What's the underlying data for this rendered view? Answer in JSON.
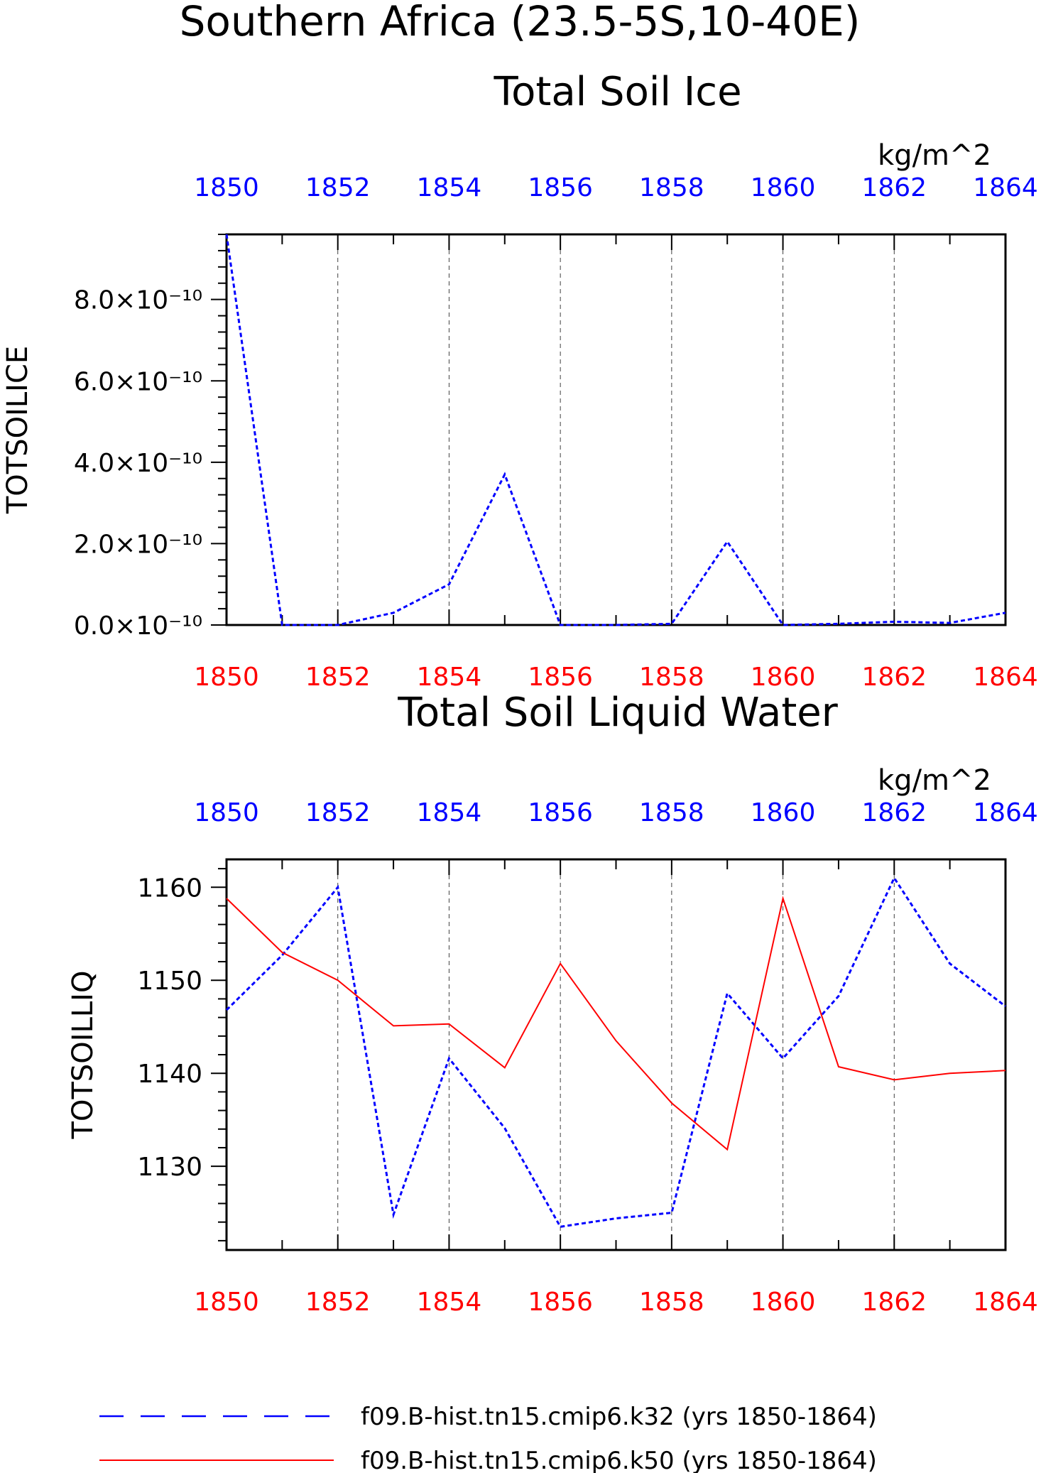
{
  "figure": {
    "title": "Southern Africa (23.5-5S,10-40E)"
  },
  "colors": {
    "k32": "#0000ff",
    "k50": "#ff0000",
    "axis": "#000000",
    "grid": "#000000"
  },
  "legend": {
    "placement": "bottom",
    "entries": [
      {
        "label": "f09.B-hist.tn15.cmip6.k32 (yrs 1850-1864)",
        "color": "#0000ff",
        "style": "dashed"
      },
      {
        "label": "f09.B-hist.tn15.cmip6.k50 (yrs 1850-1864)",
        "color": "#ff0000",
        "style": "solid"
      }
    ]
  },
  "chart_data": [
    {
      "type": "line",
      "title": "Total Soil Ice",
      "units": "kg/m^2",
      "ylabel": "TOTSOILICE",
      "x": [
        1850,
        1851,
        1852,
        1853,
        1854,
        1855,
        1856,
        1857,
        1858,
        1859,
        1860,
        1861,
        1862,
        1863,
        1864
      ],
      "xlim": [
        1850,
        1864
      ],
      "ylim": [
        0,
        9.6e-10
      ],
      "yticks": [
        0,
        2e-10,
        4e-10,
        6e-10,
        8e-10
      ],
      "ytick_labels": [
        "0.0×10⁻¹⁰",
        "2.0×10⁻¹⁰",
        "4.0×10⁻¹⁰",
        "6.0×10⁻¹⁰",
        "8.0×10⁻¹⁰"
      ],
      "xticks": [
        1850,
        1852,
        1854,
        1856,
        1858,
        1860,
        1862,
        1864
      ],
      "xtick_labels_top": [
        "1850",
        "1852",
        "1854",
        "1856",
        "1858",
        "1860",
        "1862",
        "1864"
      ],
      "xtick_labels_bottom": [
        "1850",
        "1852",
        "1854",
        "1856",
        "1858",
        "1860",
        "1862",
        "1864"
      ],
      "grid": "vertical dashed at labeled ticks",
      "series": [
        {
          "name": "f09.B-hist.tn15.cmip6.k32",
          "color": "#0000ff",
          "style": "dashed",
          "values": [
            9.6e-10,
            0,
            0,
            3e-11,
            1e-10,
            3.7e-10,
            0,
            0,
            3e-12,
            2.05e-10,
            0,
            3e-12,
            8e-12,
            5e-12,
            3e-11
          ]
        }
      ]
    },
    {
      "type": "line",
      "title": "Total Soil Liquid Water",
      "units": "kg/m^2",
      "ylabel": "TOTSOILLIQ",
      "x": [
        1850,
        1851,
        1852,
        1853,
        1854,
        1855,
        1856,
        1857,
        1858,
        1859,
        1860,
        1861,
        1862,
        1863,
        1864
      ],
      "xlim": [
        1850,
        1864
      ],
      "ylim": [
        1121,
        1163
      ],
      "yticks": [
        1130,
        1140,
        1150,
        1160
      ],
      "ytick_labels": [
        "1130",
        "1140",
        "1150",
        "1160"
      ],
      "xticks": [
        1850,
        1852,
        1854,
        1856,
        1858,
        1860,
        1862,
        1864
      ],
      "xtick_labels_top": [
        "1850",
        "1852",
        "1854",
        "1856",
        "1858",
        "1860",
        "1862",
        "1864"
      ],
      "xtick_labels_bottom": [
        "1850",
        "1852",
        "1854",
        "1856",
        "1858",
        "1860",
        "1862",
        "1864"
      ],
      "grid": "vertical dashed at labeled ticks",
      "series": [
        {
          "name": "f09.B-hist.tn15.cmip6.k32",
          "color": "#0000ff",
          "style": "dashed",
          "values": [
            1146.8,
            1152.7,
            1160.0,
            1124.8,
            1141.6,
            1134.1,
            1123.5,
            1124.4,
            1125.0,
            1148.6,
            1141.6,
            1148.3,
            1161.0,
            1151.8,
            1147.2
          ]
        },
        {
          "name": "f09.B-hist.tn15.cmip6.k50",
          "color": "#ff0000",
          "style": "solid",
          "values": [
            1158.8,
            1153.0,
            1150.0,
            1145.1,
            1145.3,
            1140.6,
            1151.8,
            1143.5,
            1136.8,
            1131.8,
            1158.8,
            1140.7,
            1139.3,
            1140.0,
            1140.3
          ]
        }
      ]
    }
  ]
}
